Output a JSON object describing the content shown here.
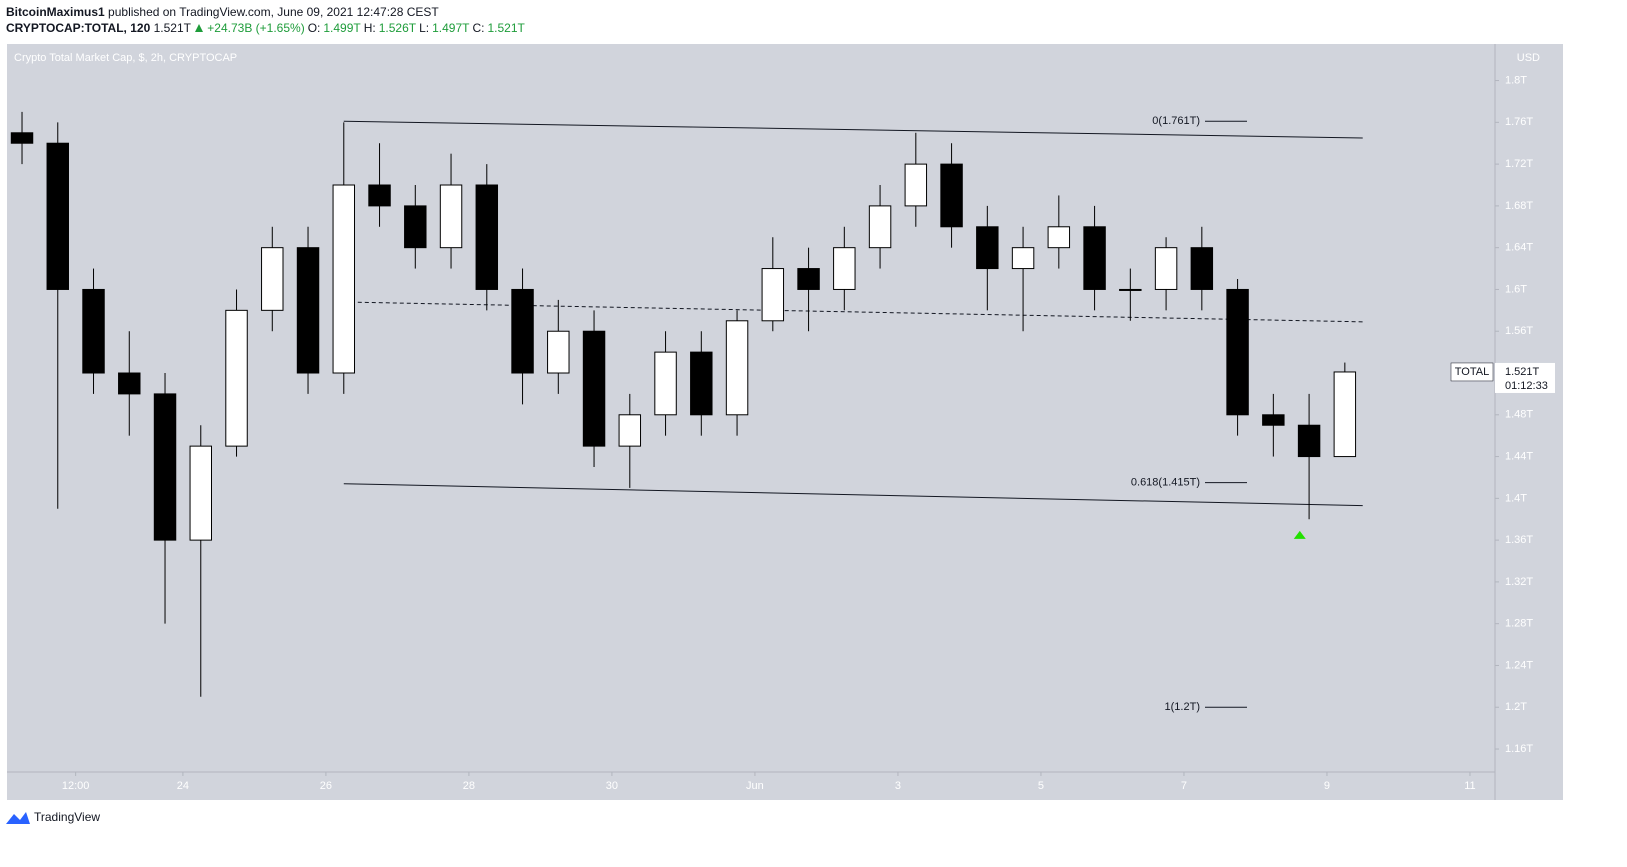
{
  "header": {
    "publisher": "BitcoinMaximus1",
    "published": "published on TradingView.com, June 09, 2021 12:47:28 CEST",
    "symbol": "CRYPTOCAP:TOTAL, 120",
    "last": "1.521T",
    "change": "+24.73B (+1.65%)",
    "o_label": "O:",
    "o": "1.499T",
    "h_label": "H:",
    "h": "1.526T",
    "l_label": "L:",
    "l": "1.497T",
    "c_label": "C:",
    "c": "1.521T"
  },
  "chart_data": {
    "type": "candlestick",
    "title": "Crypto Total Market Cap, $, 2h, CRYPTOCAP",
    "currency": "USD",
    "x": [
      21.75,
      22.25,
      22.75,
      23.25,
      23.75,
      24.25,
      24.75,
      25.25,
      25.75,
      26.25,
      26.75,
      27.25,
      27.75,
      28.25,
      28.75,
      29.25,
      29.75,
      30.25,
      30.75,
      31.25,
      31.75,
      32.25,
      32.75,
      33.25,
      33.75,
      34.25,
      34.75,
      35.25,
      35.75,
      36.25,
      36.75,
      37.25,
      37.75,
      38.25,
      38.75,
      39.25,
      39.75,
      40.25
    ],
    "open": [
      1.75,
      1.74,
      1.6,
      1.52,
      1.5,
      1.36,
      1.45,
      1.58,
      1.64,
      1.52,
      1.7,
      1.68,
      1.64,
      1.7,
      1.6,
      1.52,
      1.56,
      1.45,
      1.48,
      1.54,
      1.48,
      1.57,
      1.62,
      1.6,
      1.64,
      1.68,
      1.72,
      1.66,
      1.62,
      1.64,
      1.66,
      1.6,
      1.6,
      1.64,
      1.6,
      1.48,
      1.47,
      1.44
    ],
    "high": [
      1.77,
      1.76,
      1.62,
      1.56,
      1.52,
      1.47,
      1.6,
      1.66,
      1.66,
      1.76,
      1.74,
      1.7,
      1.73,
      1.72,
      1.62,
      1.59,
      1.58,
      1.5,
      1.56,
      1.56,
      1.58,
      1.65,
      1.64,
      1.66,
      1.7,
      1.75,
      1.74,
      1.68,
      1.66,
      1.69,
      1.68,
      1.62,
      1.65,
      1.66,
      1.61,
      1.5,
      1.5,
      1.53
    ],
    "low": [
      1.72,
      1.39,
      1.5,
      1.46,
      1.28,
      1.21,
      1.44,
      1.56,
      1.5,
      1.5,
      1.66,
      1.62,
      1.62,
      1.58,
      1.49,
      1.5,
      1.43,
      1.41,
      1.46,
      1.46,
      1.46,
      1.56,
      1.56,
      1.58,
      1.62,
      1.66,
      1.64,
      1.58,
      1.56,
      1.62,
      1.58,
      1.57,
      1.58,
      1.58,
      1.46,
      1.44,
      1.38,
      1.44
    ],
    "close": [
      1.74,
      1.6,
      1.52,
      1.5,
      1.36,
      1.45,
      1.58,
      1.64,
      1.52,
      1.7,
      1.68,
      1.64,
      1.7,
      1.6,
      1.52,
      1.56,
      1.45,
      1.48,
      1.54,
      1.48,
      1.57,
      1.62,
      1.6,
      1.64,
      1.68,
      1.72,
      1.66,
      1.62,
      1.64,
      1.66,
      1.6,
      1.6,
      1.64,
      1.6,
      1.48,
      1.47,
      1.44,
      1.521
    ],
    "up_color": "#ffffff",
    "down_color": "#000000",
    "xlim": [
      21.54,
      42.35
    ],
    "xticks": [
      {
        "value": 22.5,
        "label": "12:00"
      },
      24,
      26,
      28,
      30,
      {
        "value": 32,
        "label": "Jun"
      },
      {
        "value": 34,
        "label": "3"
      },
      {
        "value": 36,
        "label": "5"
      },
      {
        "value": 38,
        "label": "7"
      },
      {
        "value": 40,
        "label": "9"
      },
      {
        "value": 42,
        "label": "11"
      }
    ],
    "ylim": [
      1.138,
      1.835
    ],
    "yticks": [
      {
        "value": 1.16,
        "label": "1.16T"
      },
      {
        "value": 1.2,
        "label": "1.2T"
      },
      {
        "value": 1.24,
        "label": "1.24T"
      },
      {
        "value": 1.28,
        "label": "1.28T"
      },
      {
        "value": 1.32,
        "label": "1.32T"
      },
      {
        "value": 1.36,
        "label": "1.36T"
      },
      {
        "value": 1.4,
        "label": "1.4T"
      },
      {
        "value": 1.44,
        "label": "1.44T"
      },
      {
        "value": 1.48,
        "label": "1.48T"
      },
      {
        "value": 1.52,
        "label": "1.52T"
      },
      {
        "value": 1.56,
        "label": "1.56T"
      },
      {
        "value": 1.6,
        "label": "1.6T"
      },
      {
        "value": 1.64,
        "label": "1.64T"
      },
      {
        "value": 1.68,
        "label": "1.68T"
      },
      {
        "value": 1.72,
        "label": "1.72T"
      },
      {
        "value": 1.76,
        "label": "1.76T"
      },
      {
        "value": 1.8,
        "label": "1.8T"
      }
    ],
    "trend_lines": [
      {
        "x": [
          26.25,
          40.5
        ],
        "y": [
          1.761,
          1.745
        ],
        "dashed": false
      },
      {
        "x": [
          26.25,
          40.5
        ],
        "y": [
          1.588,
          1.569
        ],
        "dashed": true
      },
      {
        "x": [
          26.25,
          40.5
        ],
        "y": [
          1.414,
          1.393
        ],
        "dashed": false
      }
    ],
    "fib_levels": [
      {
        "value": 1.761,
        "label": "0(1.761T)"
      },
      {
        "value": 1.415,
        "label": "0.618(1.415T)"
      },
      {
        "value": 1.2,
        "label": "1(1.2T)"
      }
    ],
    "marker": {
      "x": 39.62,
      "y": 1.365,
      "color": "#22e000"
    },
    "price_label": {
      "name": "TOTAL",
      "value": 1.521,
      "value_label": "1.521T",
      "countdown": "01:12:33"
    }
  },
  "footer": {
    "brand": "TradingView"
  }
}
